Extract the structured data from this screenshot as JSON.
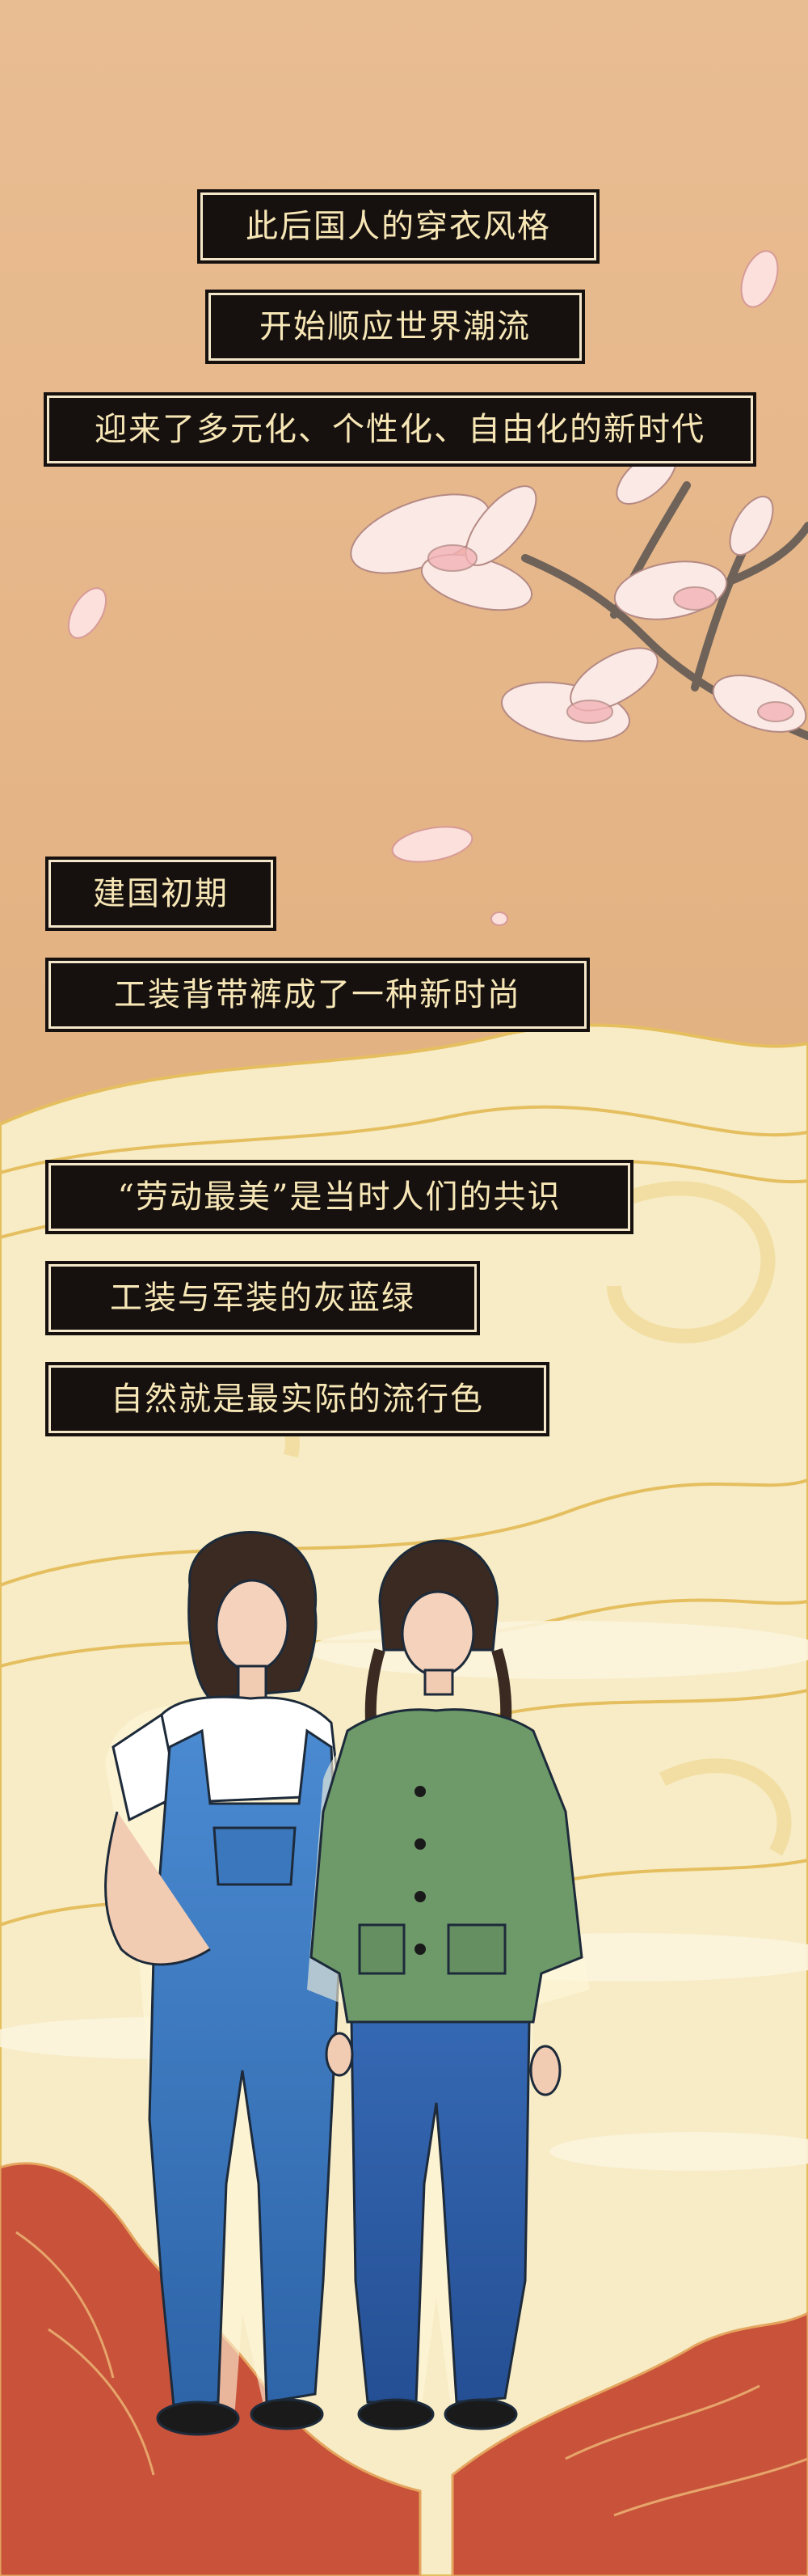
{
  "captions": {
    "line1": "此后国人的穿衣风格",
    "line2": "开始顺应世界潮流",
    "line3": "迎来了多元化、个性化、自由化的新时代",
    "line4": "建国初期",
    "line5": "工装背带裤成了一种新时尚",
    "line6": "“劳动最美”是当时人们的共识",
    "line7": "工装与军装的灰蓝绿",
    "line8": "自然就是最实际的流行色"
  },
  "colors": {
    "background_top": "#e7b68a",
    "background_cream": "#f7ecc5",
    "gold_line": "#e5bf5f",
    "caption_bg": "#16110f",
    "caption_text": "#f8e7b6",
    "overalls_blue": "#3b7bc4",
    "jacket_green": "#6e9a6a",
    "mountain_red": "#c8533a"
  },
  "illustrations": {
    "flower": "magnolia-branch",
    "figures": "two-women-in-workwear",
    "ground": "red-mountains"
  }
}
